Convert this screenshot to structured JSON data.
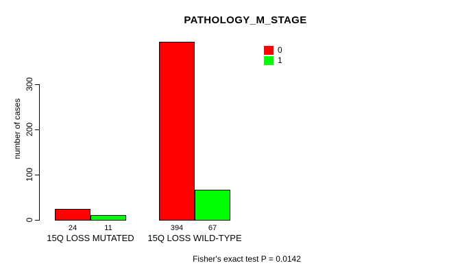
{
  "title": "PATHOLOGY_M_STAGE",
  "ylabel": "number of cases",
  "annotation": "Fisher's exact test P = 0.0142",
  "colors": {
    "series0": "#ff0000",
    "series1": "#00ff00"
  },
  "chart_data": {
    "type": "bar",
    "title": "PATHOLOGY_M_STAGE",
    "xlabel": "",
    "ylabel": "number of cases",
    "categories": [
      "15Q LOSS MUTATED",
      "15Q LOSS WILD-TYPE"
    ],
    "series": [
      {
        "name": "0",
        "color": "#ff0000",
        "values": [
          24,
          394
        ]
      },
      {
        "name": "1",
        "color": "#00ff00",
        "values": [
          11,
          67
        ]
      }
    ],
    "value_labels": [
      [
        24,
        11
      ],
      [
        394,
        67
      ]
    ],
    "yticks": [
      0,
      100,
      200,
      300
    ],
    "ylim": [
      0,
      400
    ],
    "grid": false,
    "legend_position": "top-right",
    "annotation": "Fisher's exact test P = 0.0142"
  }
}
